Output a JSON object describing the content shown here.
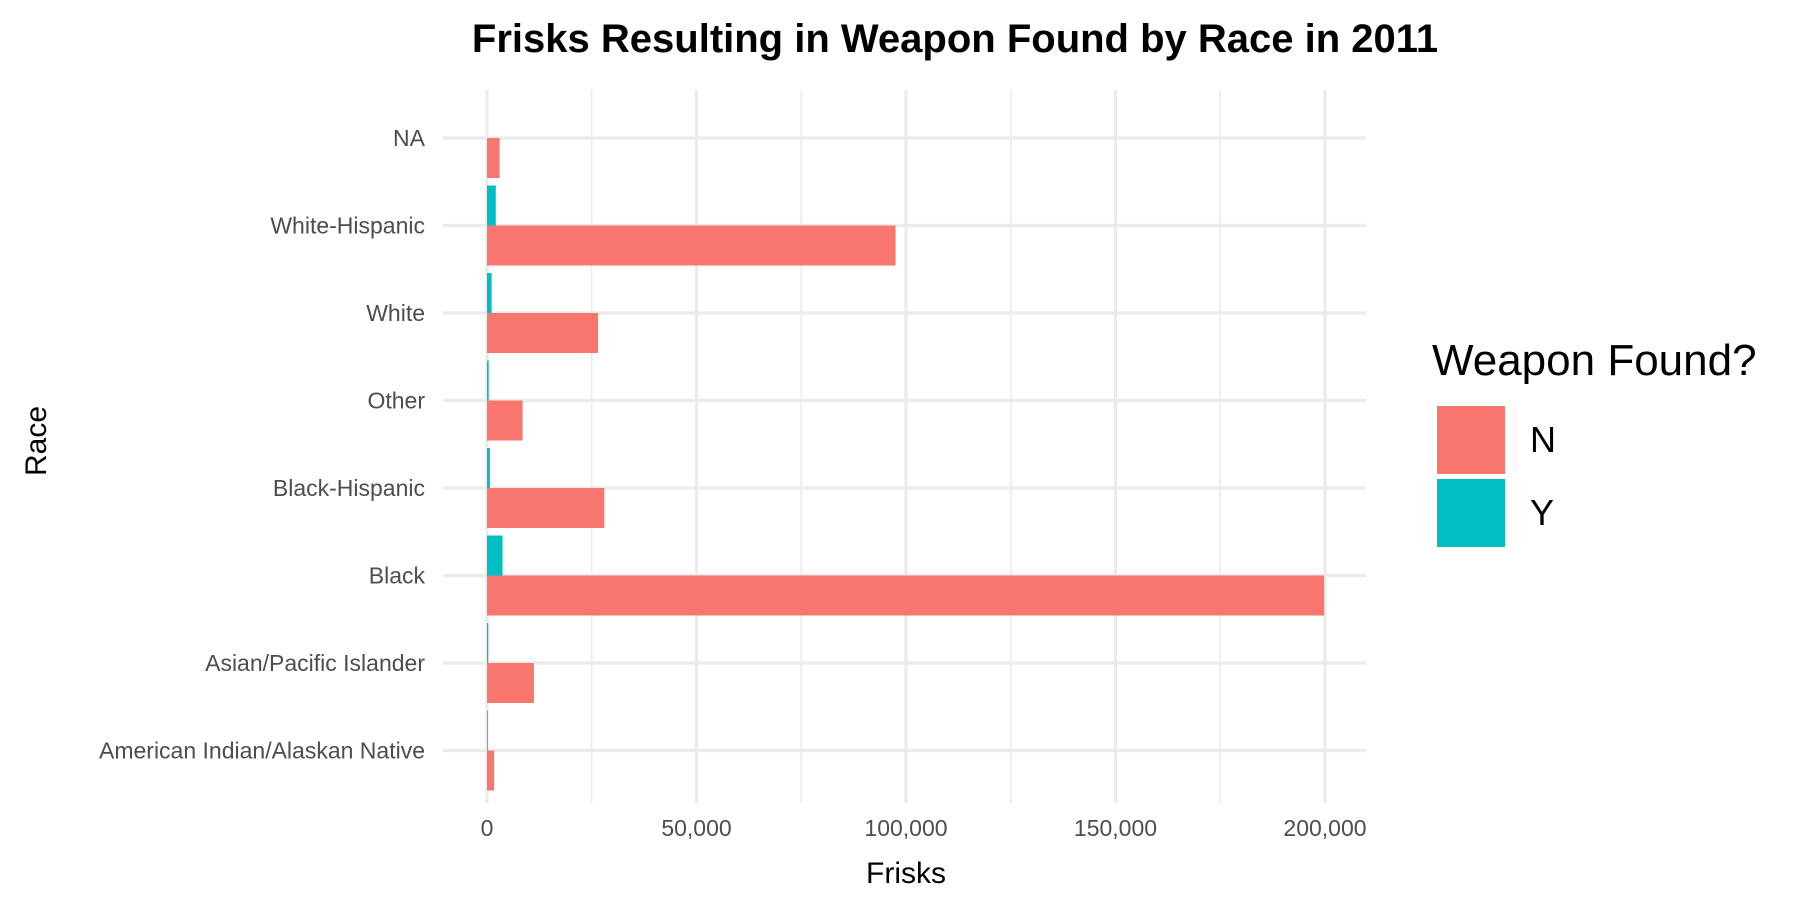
{
  "chart_data": {
    "type": "bar",
    "orientation": "horizontal",
    "position": "dodge",
    "title": "Frisks Resulting in Weapon Found by Race in 2011",
    "xlabel": "Frisks",
    "ylabel": "Race",
    "xlim": [
      0,
      210000
    ],
    "x_ticks": [
      0,
      50000,
      100000,
      150000,
      200000
    ],
    "x_tick_labels": [
      "0",
      "50,000",
      "100,000",
      "150,000",
      "200,000"
    ],
    "grid": true,
    "legend": {
      "title": "Weapon Found?",
      "placement": "right"
    },
    "categories": [
      "American Indian/Alaskan Native",
      "Asian/Pacific Islander",
      "Black",
      "Black-Hispanic",
      "Other",
      "White",
      "White-Hispanic",
      "NA"
    ],
    "series": [
      {
        "name": "N",
        "color": "#f8766d",
        "values": [
          1700,
          11200,
          199800,
          28000,
          8500,
          26500,
          97500,
          3000
        ]
      },
      {
        "name": "Y",
        "color": "#00bfc4",
        "values": [
          60,
          300,
          3700,
          700,
          400,
          1100,
          2100,
          null
        ]
      }
    ]
  }
}
